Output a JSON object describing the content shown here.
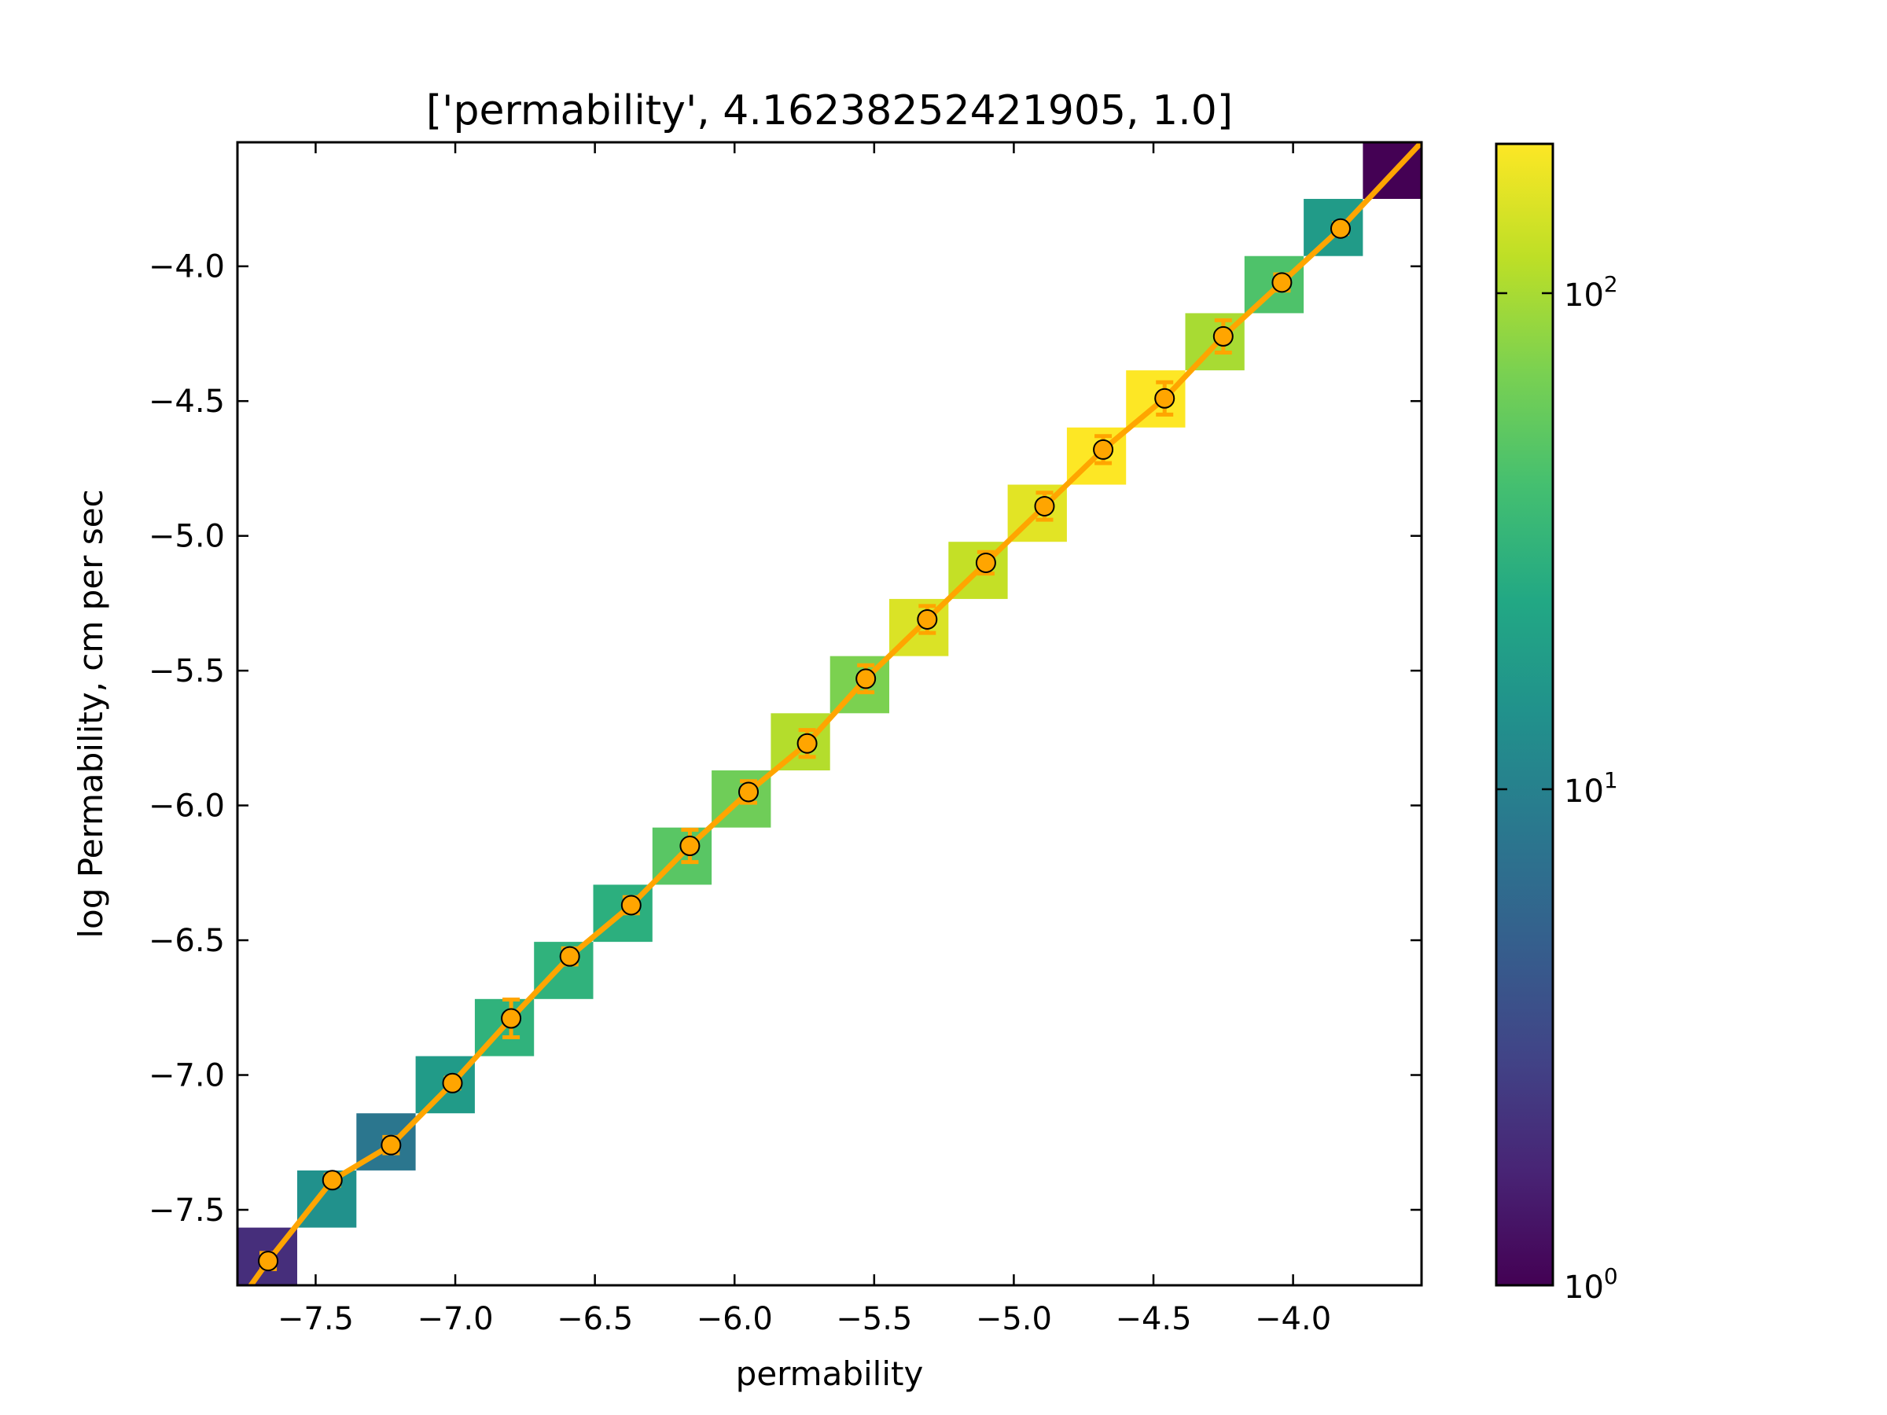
{
  "chart_data": {
    "type": "heatmap",
    "title": "['permability', 4.16238252421905, 1.0]",
    "xlabel": "permability",
    "ylabel": "log Permability, cm per sec",
    "xlim": [
      -7.78,
      -3.54
    ],
    "ylim": [
      -7.78,
      -3.54
    ],
    "xticks": [
      -7.5,
      -7.0,
      -6.5,
      -6.0,
      -5.5,
      -5.0,
      -4.5,
      -4.0
    ],
    "yticks": [
      -7.5,
      -7.0,
      -6.5,
      -6.0,
      -5.5,
      -5.0,
      -4.5,
      -4.0
    ],
    "xtick_labels": [
      "−7.5",
      "−7.0",
      "−6.5",
      "−6.0",
      "−5.5",
      "−5.0",
      "−4.5",
      "−4.0"
    ],
    "ytick_labels": [
      "−7.5",
      "−7.0",
      "−6.5",
      "−6.0",
      "−5.5",
      "−5.0",
      "−4.5",
      "−4.0"
    ],
    "bin_size": 0.212,
    "cells": [
      {
        "x": -7.672,
        "y": -7.672,
        "count": 2
      },
      {
        "x": -7.46,
        "y": -7.46,
        "count": 14
      },
      {
        "x": -7.248,
        "y": -7.248,
        "count": 8
      },
      {
        "x": -7.036,
        "y": -7.036,
        "count": 18
      },
      {
        "x": -6.824,
        "y": -6.824,
        "count": 30
      },
      {
        "x": -6.612,
        "y": -6.612,
        "count": 30
      },
      {
        "x": -6.4,
        "y": -6.4,
        "count": 28
      },
      {
        "x": -6.188,
        "y": -6.188,
        "count": 50
      },
      {
        "x": -5.976,
        "y": -5.976,
        "count": 62
      },
      {
        "x": -5.764,
        "y": -5.764,
        "count": 110
      },
      {
        "x": -5.552,
        "y": -5.552,
        "count": 70
      },
      {
        "x": -5.34,
        "y": -5.34,
        "count": 150
      },
      {
        "x": -5.128,
        "y": -5.128,
        "count": 125
      },
      {
        "x": -4.916,
        "y": -4.916,
        "count": 160
      },
      {
        "x": -4.704,
        "y": -4.704,
        "count": 200
      },
      {
        "x": -4.492,
        "y": -4.492,
        "count": 200
      },
      {
        "x": -4.28,
        "y": -4.28,
        "count": 100
      },
      {
        "x": -4.068,
        "y": -4.068,
        "count": 45
      },
      {
        "x": -3.856,
        "y": -3.856,
        "count": 18
      },
      {
        "x": -3.644,
        "y": -3.644,
        "count": 1
      }
    ],
    "series": [
      {
        "x": [
          -7.67,
          -7.44,
          -7.23,
          -7.01,
          -6.8,
          -6.59,
          -6.37,
          -6.16,
          -5.95,
          -5.74,
          -5.53,
          -5.31,
          -5.1,
          -4.89,
          -4.68,
          -4.46,
          -4.25,
          -4.04,
          -3.83
        ],
        "y": [
          -7.69,
          -7.39,
          -7.26,
          -7.03,
          -6.79,
          -6.56,
          -6.37,
          -6.15,
          -5.95,
          -5.77,
          -5.53,
          -5.31,
          -5.1,
          -4.89,
          -4.68,
          -4.49,
          -4.26,
          -4.06,
          -3.86
        ],
        "yerr": [
          0.03,
          0.02,
          0.03,
          0.02,
          0.07,
          0.03,
          0.03,
          0.06,
          0.04,
          0.05,
          0.05,
          0.05,
          0.04,
          0.05,
          0.05,
          0.06,
          0.06,
          0.03,
          0.02
        ]
      }
    ],
    "line_extends_to": [
      [
        -7.78,
        -7.85
      ],
      [
        -3.54,
        -3.54
      ]
    ],
    "colorbar": {
      "scale": "log",
      "colormap": "viridis",
      "range": [
        1,
        200
      ],
      "ticks": [
        1,
        10,
        100
      ],
      "tick_labels": [
        {
          "base": "10",
          "exp": "0"
        },
        {
          "base": "10",
          "exp": "1"
        },
        {
          "base": "10",
          "exp": "2"
        }
      ]
    },
    "colors": {
      "line": "#ffa500",
      "marker_face": "#ffa500",
      "marker_edge": "#000000",
      "axes": "#000000"
    },
    "grid": false
  }
}
